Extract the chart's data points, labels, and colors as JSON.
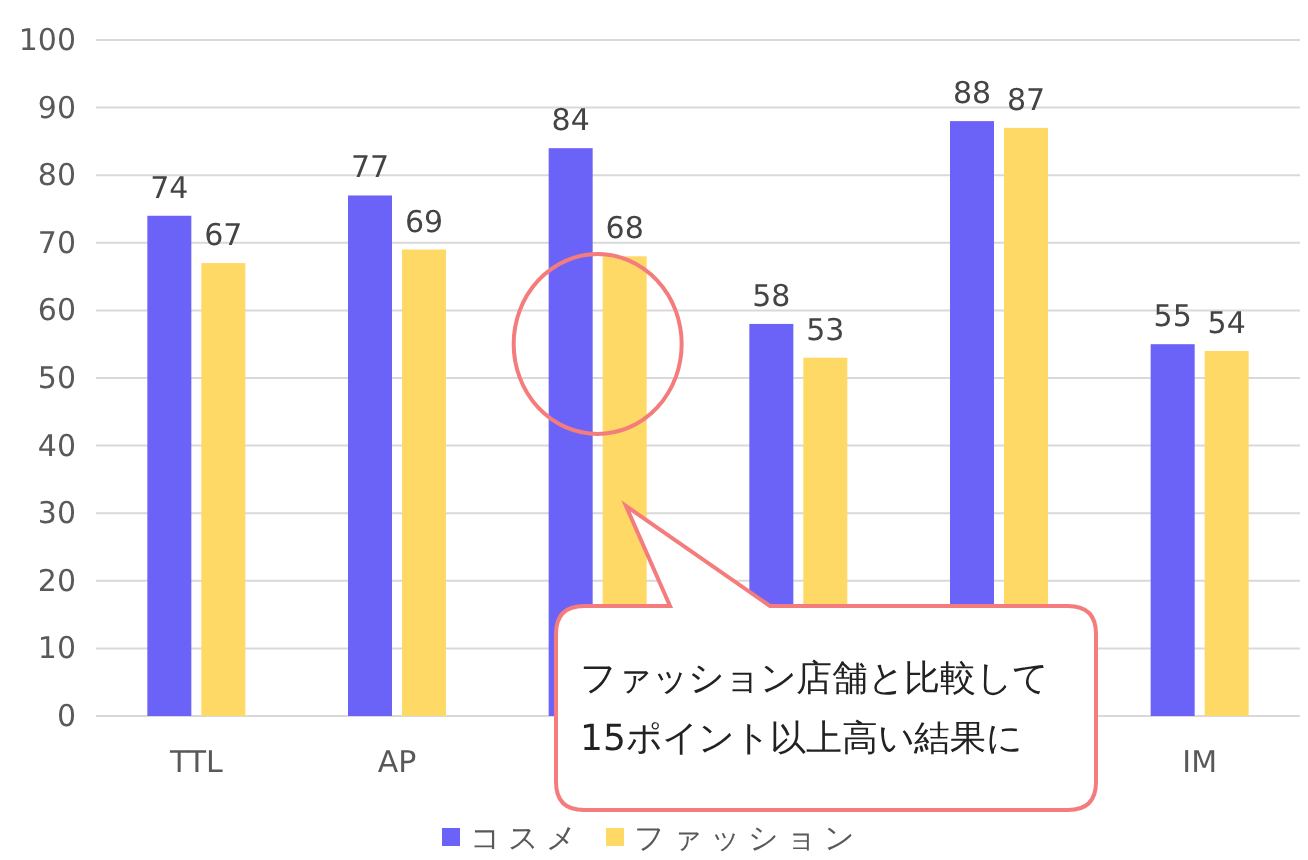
{
  "chart_data": {
    "type": "bar",
    "categories": [
      "TTL",
      "AP",
      null,
      null,
      null,
      "IM"
    ],
    "series": [
      {
        "name": "コスメ",
        "color": "#6b63f7",
        "values": [
          74,
          77,
          84,
          58,
          88,
          55
        ]
      },
      {
        "name": "ファッション",
        "color": "#ffd966",
        "values": [
          67,
          69,
          68,
          53,
          87,
          54
        ]
      }
    ],
    "ylim": [
      0,
      100
    ],
    "yticks": [
      0,
      10,
      20,
      30,
      40,
      50,
      60,
      70,
      80,
      90,
      100
    ],
    "grid": "y",
    "legend": "bottom",
    "data_labels": true,
    "annotations": [
      "ファッション店舗と比較して\n15ポイント以上高い結果に"
    ]
  }
}
